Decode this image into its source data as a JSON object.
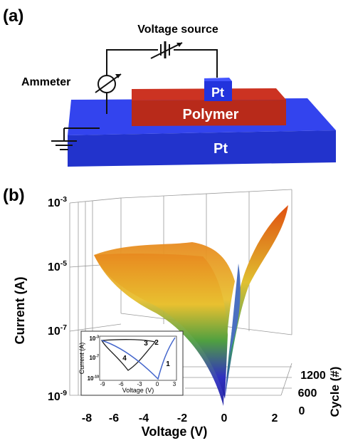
{
  "panel_a": {
    "label": "(a)",
    "voltage_source": "Voltage source",
    "ammeter": "Ammeter",
    "top_electrode": "Pt",
    "layer": "Polymer",
    "bottom_electrode": "Pt"
  },
  "panel_b": {
    "label": "(b)",
    "y_label": "Current (A)",
    "x_label": "Voltage (V)",
    "z_label": "Cycle (#)",
    "y_ticks": [
      {
        "base": "10",
        "exp": "-3"
      },
      {
        "base": "10",
        "exp": "-5"
      },
      {
        "base": "10",
        "exp": "-7"
      },
      {
        "base": "10",
        "exp": "-9"
      }
    ],
    "x_ticks": [
      "-8",
      "-6",
      "-4",
      "-2",
      "0",
      "2"
    ],
    "z_ticks": [
      "1200",
      "600",
      "0"
    ],
    "inset": {
      "y_label": "Current (A)",
      "x_label": "Voltage (V)",
      "y_ticks": [
        {
          "base": "10",
          "exp": "-3"
        },
        {
          "base": "10",
          "exp": "-7"
        },
        {
          "base": "10",
          "exp": "-10"
        }
      ],
      "x_ticks": [
        "-9",
        "-6",
        "-3",
        "0",
        "3"
      ],
      "arrows": [
        "1",
        "2",
        "3",
        "4"
      ]
    }
  }
}
